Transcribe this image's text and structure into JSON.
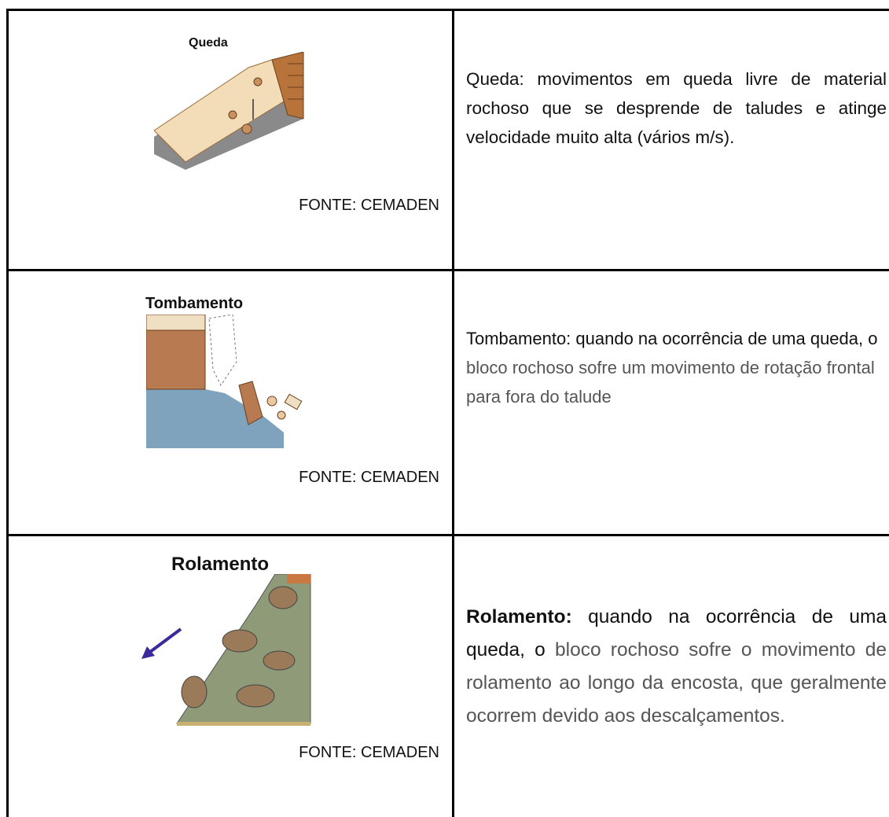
{
  "rows": [
    {
      "figure_title": "Queda",
      "source": "FONTE: CEMADEN",
      "description": [
        "Queda: movimentos em queda livre de material rochoso que se desprende de taludes e atinge velocidade muito alta (vários m/s)."
      ]
    },
    {
      "figure_title": "Tombamento",
      "source": "FONTE: CEMADEN",
      "description": [
        "Tombamento: quando na ocorrência de uma queda, o ",
        "bloco rochoso sofre um movimento de rotação frontal para fora do talude"
      ]
    },
    {
      "figure_title": "Rolamento",
      "source": "FONTE: CEMADEN",
      "description": [
        "Rolamento:",
        " quando na ocorrência de uma queda, o ",
        "bloco rochoso sofre o movimento de rolamento ao longo da encosta, que geralmente ocorrem devido aos descalçamentos."
      ]
    }
  ]
}
